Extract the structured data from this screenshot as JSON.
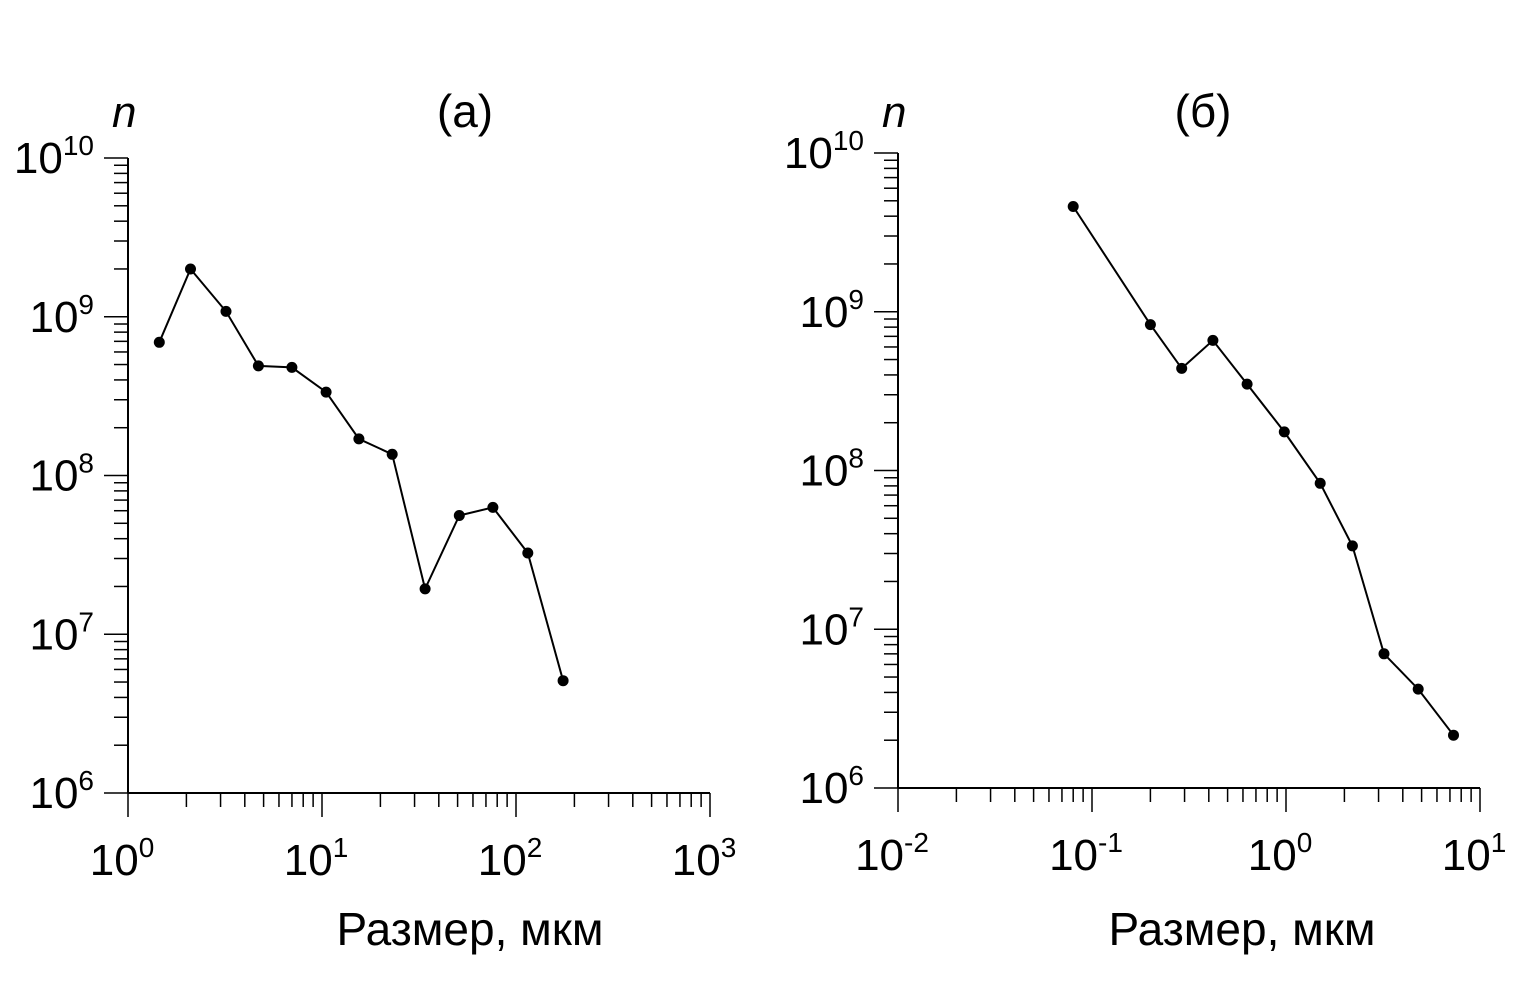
{
  "chart_data": [
    {
      "type": "line",
      "title": "(а)",
      "xlabel": "Размер, мкм",
      "ylabel": "n",
      "x_scale": "log",
      "y_scale": "log",
      "xlim": [
        1,
        1000
      ],
      "ylim": [
        1000000,
        10000000000
      ],
      "x_tick_labels": [
        {
          "base": "10",
          "exp": "0"
        },
        {
          "base": "10",
          "exp": "1"
        },
        {
          "base": "10",
          "exp": "2"
        },
        {
          "base": "10",
          "exp": "3"
        }
      ],
      "y_tick_labels": [
        {
          "base": "10",
          "exp": "6"
        },
        {
          "base": "10",
          "exp": "7"
        },
        {
          "base": "10",
          "exp": "8"
        },
        {
          "base": "10",
          "exp": "9"
        },
        {
          "base": "10",
          "exp": "10"
        }
      ],
      "x": [
        1.45,
        2.1,
        3.2,
        4.7,
        7.0,
        10.5,
        15.5,
        23,
        34,
        51,
        76,
        115,
        175
      ],
      "y": [
        690000000,
        2000000000,
        1080000000,
        490000000,
        480000000,
        335000000,
        170000000,
        136000000,
        19300000,
        56000000,
        63000000,
        32500000,
        5100000
      ],
      "grid": false,
      "markers": "filled-circle"
    },
    {
      "type": "line",
      "title": "(б)",
      "xlabel": "Размер, мкм",
      "ylabel": "n",
      "x_scale": "log",
      "y_scale": "log",
      "xlim": [
        0.01,
        10
      ],
      "ylim": [
        1000000,
        10000000000
      ],
      "x_tick_labels": [
        {
          "base": "10",
          "exp": "-2"
        },
        {
          "base": "10",
          "exp": "-1"
        },
        {
          "base": "10",
          "exp": "0"
        },
        {
          "base": "10",
          "exp": "1"
        }
      ],
      "y_tick_labels": [
        {
          "base": "10",
          "exp": "6"
        },
        {
          "base": "10",
          "exp": "7"
        },
        {
          "base": "10",
          "exp": "8"
        },
        {
          "base": "10",
          "exp": "9"
        },
        {
          "base": "10",
          "exp": "10"
        }
      ],
      "x": [
        0.08,
        0.2,
        0.29,
        0.42,
        0.63,
        0.98,
        1.5,
        2.2,
        3.2,
        4.8,
        7.3
      ],
      "y": [
        4600000000,
        830000000,
        440000000,
        660000000,
        350000000,
        175000000,
        83000000,
        33500000,
        7000000,
        4200000,
        2150000
      ],
      "grid": false,
      "markers": "filled-circle"
    }
  ]
}
